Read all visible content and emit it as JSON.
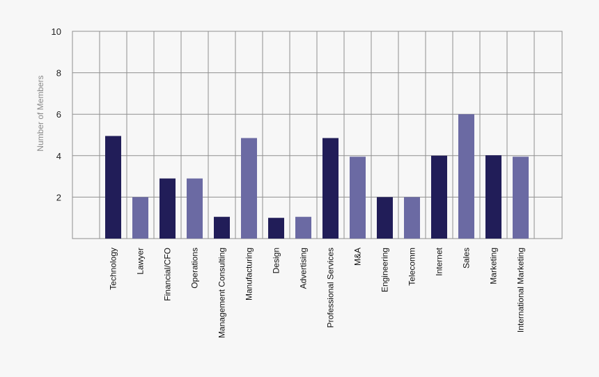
{
  "chart_data": {
    "type": "bar",
    "title": "",
    "xlabel": "",
    "ylabel": "Number of Members",
    "ylim": [
      0,
      10
    ],
    "yticks": [
      2,
      4,
      6,
      8,
      10
    ],
    "grid": true,
    "categories": [
      "Technology",
      "Lawyer",
      "Financial/CFO",
      "Operations",
      "Management Consulting",
      "Manufacturing",
      "Design",
      "Advertising",
      "Professional Services",
      "M&A",
      "Engineering",
      "Telecomm",
      "Internet",
      "Sales",
      "Marketing",
      "International Marketing"
    ],
    "values": [
      4.95,
      2.0,
      2.9,
      2.9,
      1.05,
      4.85,
      1.0,
      1.05,
      4.85,
      3.95,
      2.0,
      2.0,
      4.0,
      6.0,
      4.02,
      3.95
    ],
    "bar_colors": [
      "#211d58",
      "#6b6aa3",
      "#211d58",
      "#6b6aa3",
      "#211d58",
      "#6b6aa3",
      "#211d58",
      "#6b6aa3",
      "#211d58",
      "#6b6aa3",
      "#211d58",
      "#6b6aa3",
      "#211d58",
      "#6b6aa3",
      "#211d58",
      "#6b6aa3"
    ],
    "colors": {
      "dark_bar": "#211d58",
      "light_bar": "#6b6aa3",
      "grid": "#8f8f8f",
      "background": "#f7f7f7"
    }
  }
}
